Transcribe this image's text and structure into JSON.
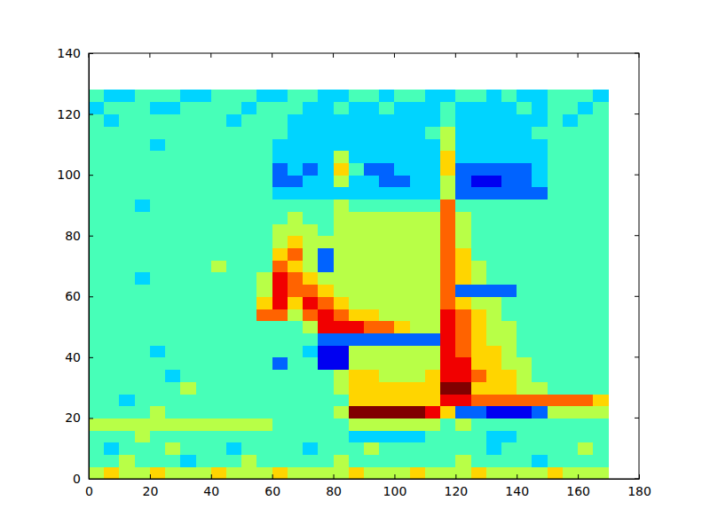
{
  "chart_data": {
    "type": "heatmap",
    "xlim": [
      0,
      180
    ],
    "xticks": [
      0,
      20,
      40,
      60,
      80,
      100,
      120,
      140,
      160,
      180
    ],
    "ylim": [
      0,
      140
    ],
    "yticks": [
      0,
      20,
      40,
      60,
      80,
      100,
      120,
      140
    ],
    "x_range": [
      0,
      170
    ],
    "y_range": [
      0,
      128
    ],
    "zlim": [
      0,
      9
    ],
    "cells": [
      [
        5,
        6,
        5,
        5,
        6,
        5,
        5,
        5,
        6,
        5,
        5,
        5,
        6,
        5,
        5,
        5,
        5,
        6,
        5,
        5,
        5,
        6,
        5,
        5,
        5,
        6,
        5,
        5,
        5,
        5,
        6,
        5,
        5,
        5
      ],
      [
        4,
        4,
        5,
        4,
        4,
        4,
        3,
        4,
        4,
        4,
        5,
        4,
        4,
        4,
        4,
        4,
        5,
        4,
        4,
        4,
        4,
        4,
        4,
        4,
        5,
        4,
        4,
        4,
        4,
        3,
        4,
        4,
        4,
        4
      ],
      [
        4,
        3,
        4,
        4,
        4,
        5,
        4,
        4,
        4,
        3,
        4,
        4,
        4,
        4,
        3,
        4,
        4,
        4,
        5,
        4,
        4,
        4,
        4,
        4,
        4,
        4,
        3,
        4,
        4,
        4,
        4,
        4,
        5,
        4
      ],
      [
        4,
        4,
        4,
        5,
        4,
        4,
        4,
        4,
        4,
        4,
        4,
        4,
        4,
        4,
        4,
        4,
        4,
        3,
        3,
        3,
        3,
        3,
        4,
        4,
        4,
        4,
        3,
        3,
        4,
        4,
        4,
        4,
        4,
        4
      ],
      [
        5,
        5,
        5,
        5,
        5,
        5,
        5,
        5,
        5,
        5,
        5,
        5,
        4,
        4,
        4,
        4,
        4,
        5,
        5,
        5,
        5,
        5,
        5,
        4,
        5,
        4,
        4,
        4,
        4,
        4,
        4,
        4,
        4,
        4
      ],
      [
        4,
        4,
        4,
        4,
        5,
        4,
        4,
        4,
        4,
        4,
        4,
        4,
        4,
        4,
        4,
        4,
        5,
        9,
        9,
        9,
        9,
        9,
        8,
        6,
        2,
        2,
        1,
        1,
        1,
        2,
        5,
        5,
        5,
        5
      ],
      [
        4,
        4,
        3,
        4,
        4,
        4,
        4,
        4,
        4,
        4,
        4,
        4,
        4,
        4,
        4,
        4,
        4,
        6,
        6,
        6,
        6,
        6,
        6,
        8,
        8,
        7,
        7,
        7,
        7,
        7,
        7,
        7,
        7,
        6
      ],
      [
        4,
        4,
        4,
        4,
        4,
        4,
        5,
        4,
        4,
        4,
        4,
        4,
        4,
        4,
        4,
        4,
        5,
        6,
        6,
        6,
        6,
        6,
        6,
        9,
        9,
        6,
        6,
        6,
        5,
        5,
        4,
        4,
        4,
        4
      ],
      [
        4,
        4,
        4,
        4,
        4,
        3,
        4,
        4,
        4,
        4,
        4,
        4,
        4,
        4,
        4,
        4,
        5,
        6,
        6,
        5,
        5,
        5,
        6,
        8,
        8,
        7,
        6,
        6,
        5,
        4,
        4,
        4,
        4,
        4
      ],
      [
        4,
        4,
        4,
        4,
        4,
        4,
        4,
        4,
        4,
        4,
        4,
        4,
        2,
        4,
        4,
        1,
        1,
        5,
        5,
        5,
        5,
        5,
        5,
        8,
        8,
        6,
        6,
        5,
        5,
        4,
        4,
        4,
        4,
        4
      ],
      [
        4,
        4,
        4,
        4,
        3,
        4,
        4,
        4,
        4,
        4,
        4,
        4,
        4,
        4,
        3,
        1,
        1,
        5,
        5,
        5,
        5,
        5,
        5,
        8,
        7,
        6,
        6,
        5,
        4,
        4,
        4,
        4,
        4,
        4
      ],
      [
        4,
        4,
        4,
        4,
        4,
        4,
        4,
        4,
        4,
        4,
        4,
        4,
        4,
        4,
        4,
        2,
        2,
        2,
        2,
        2,
        2,
        2,
        2,
        8,
        7,
        6,
        5,
        5,
        4,
        4,
        4,
        4,
        4,
        4
      ],
      [
        4,
        4,
        4,
        4,
        4,
        4,
        4,
        4,
        4,
        4,
        4,
        4,
        4,
        4,
        5,
        8,
        8,
        8,
        7,
        7,
        6,
        5,
        5,
        8,
        7,
        6,
        5,
        5,
        4,
        4,
        4,
        4,
        4,
        4
      ],
      [
        4,
        4,
        4,
        4,
        4,
        4,
        4,
        4,
        4,
        4,
        4,
        7,
        7,
        5,
        7,
        8,
        7,
        6,
        6,
        5,
        5,
        5,
        5,
        8,
        7,
        6,
        5,
        4,
        4,
        4,
        4,
        4,
        4,
        4
      ],
      [
        4,
        4,
        4,
        4,
        4,
        4,
        4,
        4,
        4,
        4,
        4,
        6,
        8,
        6,
        8,
        7,
        6,
        5,
        5,
        5,
        5,
        5,
        5,
        7,
        6,
        5,
        5,
        4,
        4,
        4,
        4,
        4,
        4,
        4
      ],
      [
        4,
        4,
        4,
        4,
        4,
        4,
        4,
        4,
        4,
        4,
        4,
        5,
        8,
        7,
        7,
        6,
        5,
        5,
        5,
        5,
        5,
        5,
        5,
        7,
        2,
        2,
        2,
        2,
        4,
        4,
        4,
        4,
        4,
        4
      ],
      [
        4,
        4,
        4,
        3,
        4,
        4,
        4,
        4,
        4,
        4,
        4,
        5,
        8,
        7,
        6,
        5,
        5,
        5,
        5,
        5,
        5,
        5,
        5,
        7,
        6,
        5,
        4,
        4,
        4,
        4,
        4,
        4,
        4,
        4
      ],
      [
        4,
        4,
        4,
        4,
        4,
        4,
        4,
        4,
        5,
        4,
        4,
        4,
        7,
        6,
        5,
        2,
        5,
        5,
        5,
        5,
        5,
        5,
        5,
        7,
        6,
        5,
        4,
        4,
        4,
        4,
        4,
        4,
        4,
        4
      ],
      [
        4,
        4,
        4,
        4,
        4,
        4,
        4,
        4,
        4,
        4,
        4,
        4,
        6,
        7,
        5,
        2,
        5,
        5,
        5,
        5,
        5,
        5,
        5,
        7,
        6,
        4,
        4,
        4,
        4,
        4,
        4,
        4,
        4,
        4
      ],
      [
        4,
        4,
        4,
        4,
        4,
        4,
        4,
        4,
        4,
        4,
        4,
        4,
        5,
        6,
        5,
        5,
        5,
        5,
        5,
        5,
        5,
        5,
        5,
        7,
        5,
        4,
        4,
        4,
        4,
        4,
        4,
        4,
        4,
        4
      ],
      [
        4,
        4,
        4,
        4,
        4,
        4,
        4,
        4,
        4,
        4,
        4,
        4,
        5,
        5,
        5,
        4,
        5,
        5,
        5,
        5,
        5,
        5,
        5,
        7,
        5,
        4,
        4,
        4,
        4,
        4,
        4,
        4,
        4,
        4
      ],
      [
        4,
        4,
        4,
        4,
        4,
        4,
        4,
        4,
        4,
        4,
        4,
        4,
        4,
        5,
        4,
        4,
        5,
        5,
        5,
        5,
        5,
        5,
        5,
        7,
        5,
        4,
        4,
        4,
        4,
        4,
        4,
        4,
        4,
        4
      ],
      [
        4,
        4,
        4,
        3,
        4,
        4,
        4,
        4,
        4,
        4,
        4,
        4,
        4,
        4,
        4,
        4,
        5,
        4,
        4,
        4,
        4,
        4,
        4,
        7,
        4,
        4,
        4,
        4,
        4,
        4,
        4,
        4,
        4,
        4
      ],
      [
        4,
        4,
        4,
        4,
        4,
        4,
        4,
        4,
        4,
        4,
        4,
        4,
        3,
        3,
        3,
        3,
        3,
        3,
        3,
        3,
        3,
        3,
        3,
        5,
        2,
        2,
        2,
        2,
        2,
        2,
        4,
        4,
        4,
        4
      ],
      [
        4,
        4,
        4,
        4,
        4,
        4,
        4,
        4,
        4,
        4,
        4,
        4,
        2,
        2,
        3,
        3,
        5,
        3,
        3,
        2,
        2,
        3,
        3,
        5,
        2,
        1,
        1,
        2,
        2,
        3,
        4,
        4,
        4,
        4
      ],
      [
        4,
        4,
        4,
        4,
        4,
        4,
        4,
        4,
        4,
        4,
        4,
        4,
        2,
        3,
        2,
        3,
        6,
        4,
        2,
        2,
        3,
        3,
        3,
        6,
        2,
        2,
        2,
        2,
        2,
        3,
        4,
        4,
        4,
        4
      ],
      [
        4,
        4,
        4,
        4,
        4,
        4,
        4,
        4,
        4,
        4,
        4,
        4,
        3,
        3,
        3,
        3,
        5,
        3,
        3,
        3,
        3,
        3,
        3,
        6,
        3,
        3,
        3,
        3,
        3,
        3,
        4,
        4,
        4,
        4
      ],
      [
        4,
        4,
        4,
        4,
        3,
        4,
        4,
        4,
        4,
        4,
        4,
        4,
        3,
        3,
        3,
        3,
        3,
        3,
        3,
        3,
        3,
        3,
        3,
        5,
        3,
        3,
        3,
        3,
        3,
        3,
        4,
        4,
        4,
        4
      ],
      [
        4,
        4,
        4,
        4,
        4,
        4,
        4,
        4,
        4,
        4,
        4,
        4,
        4,
        3,
        3,
        3,
        3,
        3,
        3,
        3,
        3,
        3,
        4,
        5,
        3,
        3,
        3,
        3,
        3,
        4,
        4,
        4,
        4,
        4
      ],
      [
        4,
        3,
        4,
        4,
        4,
        4,
        4,
        4,
        4,
        3,
        4,
        4,
        4,
        3,
        3,
        3,
        3,
        3,
        3,
        3,
        3,
        3,
        3,
        4,
        3,
        3,
        3,
        3,
        3,
        3,
        4,
        3,
        4,
        4
      ],
      [
        3,
        4,
        4,
        4,
        3,
        3,
        4,
        4,
        4,
        4,
        3,
        4,
        4,
        4,
        3,
        3,
        4,
        3,
        3,
        4,
        3,
        3,
        3,
        4,
        3,
        3,
        3,
        3,
        4,
        3,
        4,
        4,
        3,
        4
      ],
      [
        4,
        3,
        3,
        4,
        4,
        4,
        3,
        3,
        4,
        4,
        4,
        3,
        3,
        4,
        4,
        3,
        3,
        4,
        4,
        3,
        4,
        4,
        3,
        3,
        4,
        4,
        3,
        4,
        3,
        3,
        4,
        4,
        4,
        3
      ]
    ]
  }
}
